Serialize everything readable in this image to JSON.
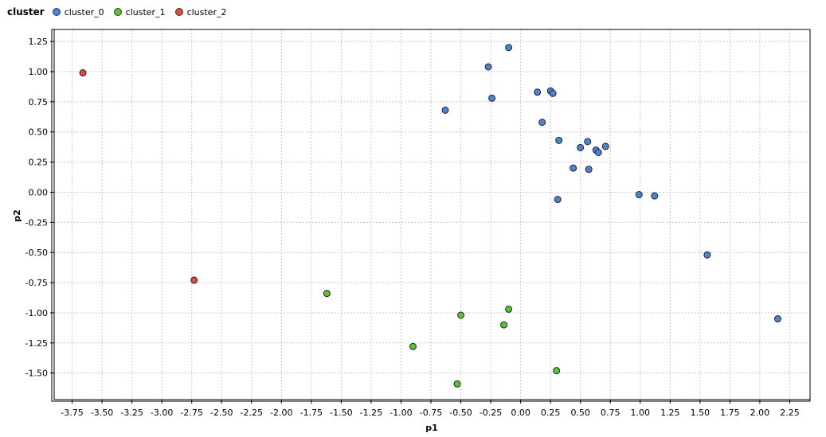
{
  "legend": {
    "title": "cluster",
    "items": [
      {
        "label": "cluster_0",
        "color": "#4a85d4"
      },
      {
        "label": "cluster_1",
        "color": "#59c13a"
      },
      {
        "label": "cluster_2",
        "color": "#e04a3a"
      }
    ]
  },
  "chart_data": {
    "type": "scatter",
    "title": "",
    "xlabel": "p1",
    "ylabel": "p2",
    "xlim": [
      -3.9,
      2.42
    ],
    "ylim": [
      -1.72,
      1.35
    ],
    "xticks": [
      -3.75,
      -3.5,
      -3.25,
      -3.0,
      -2.75,
      -2.5,
      -2.25,
      -2.0,
      -1.75,
      -1.5,
      -1.25,
      -1.0,
      -0.75,
      -0.5,
      -0.25,
      0.0,
      0.25,
      0.5,
      0.75,
      1.0,
      1.25,
      1.5,
      1.75,
      2.0,
      2.25
    ],
    "xtick_labels": [
      "-3.75",
      "-3.50",
      "-3.25",
      "-3.00",
      "-2.75",
      "-2.50",
      "-2.25",
      "-2.00",
      "-1.75",
      "-1.50",
      "-1.25",
      "-1.00",
      "-0.75",
      "-0.50",
      "-0.25",
      "0.00",
      "0.25",
      "0.50",
      "0.75",
      "1.00",
      "1.25",
      "1.50",
      "1.75",
      "2.00",
      "2.25"
    ],
    "yticks": [
      1.25,
      1.0,
      0.75,
      0.5,
      0.25,
      0.0,
      -0.25,
      -0.5,
      -0.75,
      -1.0,
      -1.25,
      -1.5
    ],
    "ytick_labels": [
      "1.25",
      "1.00",
      "0.75",
      "0.50",
      "0.25",
      "0.00",
      "-0.25",
      "-0.50",
      "-0.75",
      "-1.00",
      "-1.25",
      "-1.50"
    ],
    "grid": true,
    "legend_position": "top-left",
    "series": [
      {
        "name": "cluster_0",
        "color": "#4a85d4",
        "points": [
          [
            -0.1,
            1.2
          ],
          [
            -0.27,
            1.04
          ],
          [
            -0.24,
            0.78
          ],
          [
            -0.63,
            0.68
          ],
          [
            0.14,
            0.83
          ],
          [
            0.25,
            0.84
          ],
          [
            0.27,
            0.82
          ],
          [
            0.18,
            0.58
          ],
          [
            0.32,
            0.43
          ],
          [
            0.5,
            0.37
          ],
          [
            0.56,
            0.42
          ],
          [
            0.63,
            0.35
          ],
          [
            0.65,
            0.33
          ],
          [
            0.71,
            0.38
          ],
          [
            0.44,
            0.2
          ],
          [
            0.57,
            0.19
          ],
          [
            0.31,
            -0.06
          ],
          [
            0.99,
            -0.02
          ],
          [
            1.12,
            -0.03
          ],
          [
            1.56,
            -0.52
          ],
          [
            2.15,
            -1.05
          ]
        ]
      },
      {
        "name": "cluster_1",
        "color": "#59c13a",
        "points": [
          [
            -1.62,
            -0.84
          ],
          [
            -0.5,
            -1.02
          ],
          [
            -0.1,
            -0.97
          ],
          [
            -0.14,
            -1.1
          ],
          [
            -0.9,
            -1.28
          ],
          [
            0.3,
            -1.48
          ],
          [
            -0.53,
            -1.59
          ]
        ]
      },
      {
        "name": "cluster_2",
        "color": "#e04a3a",
        "points": [
          [
            -3.66,
            0.99
          ],
          [
            -2.73,
            -0.73
          ]
        ]
      }
    ]
  }
}
